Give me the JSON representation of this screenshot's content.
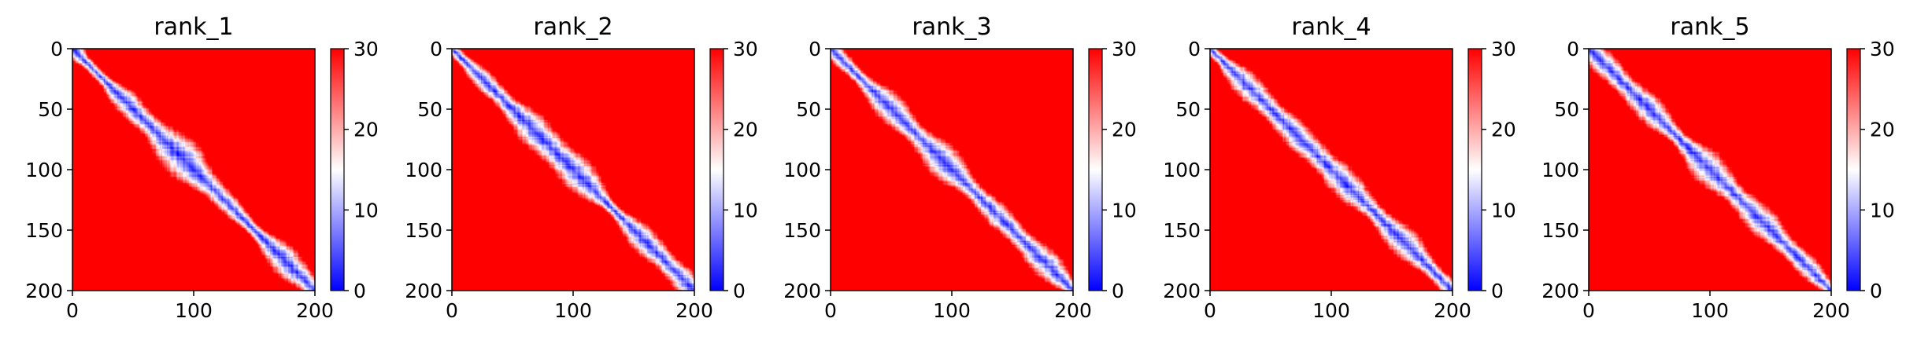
{
  "chart_data": [
    {
      "type": "heatmap",
      "title": "rank_1",
      "x_ticks": [
        0,
        100,
        200
      ],
      "y_ticks": [
        0,
        50,
        100,
        150,
        200
      ],
      "xlim": [
        0,
        200
      ],
      "ylim": [
        200,
        0
      ],
      "colorbar": {
        "ticks": [
          0,
          10,
          20,
          30
        ],
        "range": [
          0,
          30
        ],
        "colormap": "bwr"
      },
      "variant": 1
    },
    {
      "type": "heatmap",
      "title": "rank_2",
      "x_ticks": [
        0,
        100,
        200
      ],
      "y_ticks": [
        0,
        50,
        100,
        150,
        200
      ],
      "xlim": [
        0,
        200
      ],
      "ylim": [
        200,
        0
      ],
      "colorbar": {
        "ticks": [
          0,
          10,
          20,
          30
        ],
        "range": [
          0,
          30
        ],
        "colormap": "bwr"
      },
      "variant": 2
    },
    {
      "type": "heatmap",
      "title": "rank_3",
      "x_ticks": [
        0,
        100,
        200
      ],
      "y_ticks": [
        0,
        50,
        100,
        150,
        200
      ],
      "xlim": [
        0,
        200
      ],
      "ylim": [
        200,
        0
      ],
      "colorbar": {
        "ticks": [
          0,
          10,
          20,
          30
        ],
        "range": [
          0,
          30
        ],
        "colormap": "bwr"
      },
      "variant": 3
    },
    {
      "type": "heatmap",
      "title": "rank_4",
      "x_ticks": [
        0,
        100,
        200
      ],
      "y_ticks": [
        0,
        50,
        100,
        150,
        200
      ],
      "xlim": [
        0,
        200
      ],
      "ylim": [
        200,
        0
      ],
      "colorbar": {
        "ticks": [
          0,
          10,
          20,
          30
        ],
        "range": [
          0,
          30
        ],
        "colormap": "bwr"
      },
      "variant": 4
    },
    {
      "type": "heatmap",
      "title": "rank_5",
      "x_ticks": [
        0,
        100,
        200
      ],
      "y_ticks": [
        0,
        50,
        100,
        150,
        200
      ],
      "xlim": [
        0,
        200
      ],
      "ylim": [
        200,
        0
      ],
      "colorbar": {
        "ticks": [
          0,
          10,
          20,
          30
        ],
        "range": [
          0,
          30
        ],
        "colormap": "bwr"
      },
      "variant": 5
    }
  ],
  "colors": {
    "low": "#0000ff",
    "mid": "#ffffff",
    "high": "#ff0000"
  }
}
